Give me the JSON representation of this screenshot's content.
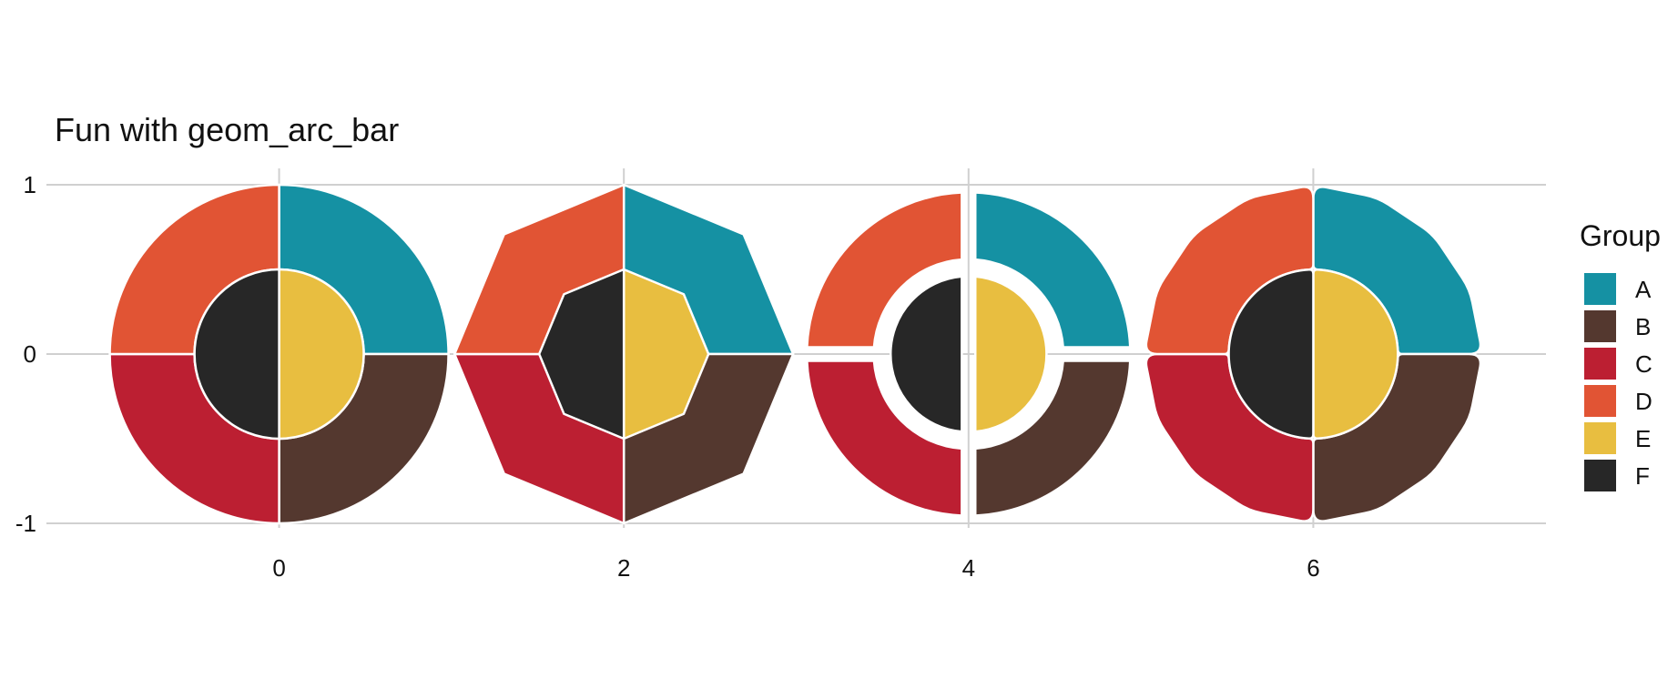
{
  "chart_data": {
    "type": "arc_bar",
    "title": "Fun with geom_arc_bar",
    "xlabel": "",
    "ylabel": "",
    "x_ticks": [
      "0",
      "2",
      "4",
      "6"
    ],
    "y_ticks": [
      "-1",
      "0",
      "1"
    ],
    "xlim": [
      -1.35,
      7.35
    ],
    "ylim": [
      -1,
      1
    ],
    "grid": true,
    "legend": {
      "title": "Group",
      "position": "right",
      "items": [
        "A",
        "B",
        "C",
        "D",
        "E",
        "F"
      ]
    },
    "colors": {
      "A": "#1591A3",
      "B": "#54382F",
      "C": "#BC1F32",
      "D": "#E15434",
      "E": "#E8BE40",
      "F": "#272727"
    },
    "panels": [
      {
        "x0": 0,
        "style": "smooth",
        "n_sides": null,
        "separation": 0,
        "corner_radius": 0
      },
      {
        "x0": 2,
        "style": "polygon",
        "n_sides": 8,
        "separation": 0,
        "corner_radius": 0
      },
      {
        "x0": 4,
        "style": "separated",
        "n_sides": null,
        "separation": 0.05,
        "corner_radius": 0
      },
      {
        "x0": 6,
        "style": "rounded",
        "n_sides": 16,
        "separation": 0,
        "corner_radius": 0.08
      }
    ],
    "arcs": [
      {
        "group": "A",
        "r0": 0.5,
        "r": 1.0,
        "start_deg": 0,
        "end_deg": 90
      },
      {
        "group": "B",
        "r0": 0.5,
        "r": 1.0,
        "start_deg": 90,
        "end_deg": 180
      },
      {
        "group": "C",
        "r0": 0.5,
        "r": 1.0,
        "start_deg": 180,
        "end_deg": 270
      },
      {
        "group": "D",
        "r0": 0.5,
        "r": 1.0,
        "start_deg": 270,
        "end_deg": 360
      },
      {
        "group": "E",
        "r0": 0,
        "r": 0.5,
        "start_deg": 0,
        "end_deg": 180
      },
      {
        "group": "F",
        "r0": 0,
        "r": 0.5,
        "start_deg": 180,
        "end_deg": 360
      }
    ]
  }
}
